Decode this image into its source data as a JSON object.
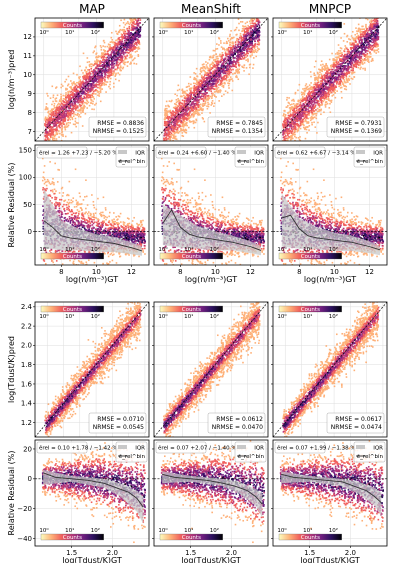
{
  "chart_data": {
    "type": "heatmap",
    "columns": [
      "MAP",
      "MeanShift",
      "MNPCP"
    ],
    "colorbar": {
      "label": "Counts",
      "ticks": [
        "10⁰",
        "10¹",
        "10²"
      ],
      "colormap": [
        "#fcfdbf",
        "#feb078",
        "#f1605d",
        "#b63679",
        "#721f81",
        "#2d1160",
        "#000004"
      ]
    },
    "rows": [
      {
        "kind": "scatter",
        "ylabel": "log(n/m⁻³)pred",
        "xlim": [
          6.5,
          13
        ],
        "ylim": [
          6.5,
          13
        ],
        "yticks": [
          {
            "v": 7,
            "t": "7"
          },
          {
            "v": 8,
            "t": "8"
          },
          {
            "v": 9,
            "t": "9"
          },
          {
            "v": 10,
            "t": "10"
          },
          {
            "v": 11,
            "t": "11"
          },
          {
            "v": 12,
            "t": "12"
          }
        ],
        "panels": [
          {
            "metrics": [
              "RMSE = 0.8836",
              "NRMSE = 0.1525"
            ]
          },
          {
            "metrics": [
              "RMSE = 0.7845",
              "NRMSE = 0.1354"
            ]
          },
          {
            "metrics": [
              "RMSE = 0.7931",
              "NRMSE = 0.1369"
            ]
          }
        ]
      },
      {
        "kind": "residual",
        "ylabel": "Relative Residual (%)",
        "xlabel": "log(n/m⁻³)GT",
        "xlim": [
          6.5,
          13
        ],
        "ylim": [
          -62,
          160
        ],
        "xticks": [
          {
            "v": 8,
            "t": "8"
          },
          {
            "v": 10,
            "t": "10"
          },
          {
            "v": 12,
            "t": "12"
          }
        ],
        "yticks": [
          {
            "v": 0,
            "t": "0"
          },
          {
            "v": 50,
            "t": "50"
          },
          {
            "v": 100,
            "t": "100"
          },
          {
            "v": 150,
            "t": "150"
          }
        ],
        "legend": [
          "IQR",
          "ẽ_rel^bin"
        ],
        "panels": [
          {
            "summary": "ẽrel = 1.26 +7.23 / −5.20 %",
            "median": [
              [
                7,
                20
              ],
              [
                7.5,
                8
              ],
              [
                8,
                -8
              ],
              [
                8.5,
                -12
              ],
              [
                9,
                -14
              ],
              [
                10,
                -18
              ],
              [
                11,
                -22
              ],
              [
                12,
                -30
              ],
              [
                12.6,
                -36
              ]
            ],
            "iqr_hi": [
              [
                7,
                80
              ],
              [
                8,
                20
              ],
              [
                9,
                5
              ],
              [
                10,
                -5
              ],
              [
                11,
                -10
              ],
              [
                12,
                -20
              ],
              [
                12.6,
                -28
              ]
            ],
            "iqr_lo": [
              [
                7,
                -30
              ],
              [
                8,
                -35
              ],
              [
                9,
                -35
              ],
              [
                10,
                -38
              ],
              [
                11,
                -38
              ],
              [
                12,
                -42
              ],
              [
                12.6,
                -45
              ]
            ]
          },
          {
            "summary": "ẽrel = 0.24 +6.60 / −1.40 %",
            "median": [
              [
                7,
                15
              ],
              [
                7.5,
                40
              ],
              [
                8,
                8
              ],
              [
                8.5,
                -5
              ],
              [
                9,
                -10
              ],
              [
                10,
                -15
              ],
              [
                11,
                -20
              ],
              [
                12,
                -28
              ],
              [
                12.6,
                -35
              ]
            ],
            "iqr_hi": [
              [
                7,
                50
              ],
              [
                8,
                30
              ],
              [
                9,
                10
              ],
              [
                10,
                0
              ],
              [
                11,
                -8
              ],
              [
                12,
                -18
              ],
              [
                12.6,
                -28
              ]
            ],
            "iqr_lo": [
              [
                7,
                -25
              ],
              [
                8,
                -30
              ],
              [
                9,
                -32
              ],
              [
                10,
                -35
              ],
              [
                11,
                -35
              ],
              [
                12,
                -40
              ],
              [
                12.6,
                -44
              ]
            ]
          },
          {
            "summary": "ẽrel = 0.62 +6.67 / −3.14 %",
            "median": [
              [
                7,
                25
              ],
              [
                7.5,
                30
              ],
              [
                8,
                5
              ],
              [
                8.5,
                -8
              ],
              [
                9,
                -12
              ],
              [
                10,
                -16
              ],
              [
                11,
                -20
              ],
              [
                12,
                -28
              ],
              [
                12.6,
                -34
              ]
            ],
            "iqr_hi": [
              [
                7,
                70
              ],
              [
                8,
                25
              ],
              [
                9,
                8
              ],
              [
                10,
                -2
              ],
              [
                11,
                -8
              ],
              [
                12,
                -18
              ],
              [
                12.6,
                -28
              ]
            ],
            "iqr_lo": [
              [
                7,
                -28
              ],
              [
                8,
                -32
              ],
              [
                9,
                -33
              ],
              [
                10,
                -36
              ],
              [
                11,
                -36
              ],
              [
                12,
                -40
              ],
              [
                12.6,
                -44
              ]
            ]
          }
        ]
      },
      {
        "kind": "scatter",
        "ylabel": "log(Tdust/K)pred",
        "xlim": [
          1.05,
          2.45
        ],
        "ylim": [
          1.05,
          2.45
        ],
        "yticks": [
          {
            "v": 1.2,
            "t": "1.2"
          },
          {
            "v": 1.4,
            "t": "1.4"
          },
          {
            "v": 1.6,
            "t": "1.6"
          },
          {
            "v": 1.8,
            "t": "1.8"
          },
          {
            "v": 2.0,
            "t": "2.0"
          },
          {
            "v": 2.2,
            "t": "2.2"
          },
          {
            "v": 2.4,
            "t": "2.4"
          }
        ],
        "panels": [
          {
            "metrics": [
              "RMSE = 0.0710",
              "NRMSE = 0.0545"
            ]
          },
          {
            "metrics": [
              "RMSE = 0.0612",
              "NRMSE = 0.0470"
            ]
          },
          {
            "metrics": [
              "RMSE = 0.0617",
              "NRMSE = 0.0474"
            ]
          }
        ]
      },
      {
        "kind": "residual",
        "ylabel": "Relative Residual (%)",
        "xlabel": "log(Tdust/K)GT",
        "xlim": [
          1.05,
          2.45
        ],
        "ylim": [
          -45,
          26
        ],
        "xticks": [
          {
            "v": 1.5,
            "t": "1.5"
          },
          {
            "v": 2.0,
            "t": "2.0"
          }
        ],
        "yticks": [
          {
            "v": -40,
            "t": "−40"
          },
          {
            "v": -20,
            "t": "−20"
          },
          {
            "v": 0,
            "t": "0"
          },
          {
            "v": 20,
            "t": "20"
          }
        ],
        "legend": [
          "IQR",
          "ẽ_rel^bin"
        ],
        "panels": [
          {
            "summary": "ẽrel = 0.10 +1.78 / −1.42 %",
            "median": [
              [
                1.15,
                4
              ],
              [
                1.3,
                1
              ],
              [
                1.5,
                0
              ],
              [
                1.7,
                -1
              ],
              [
                1.9,
                -3
              ],
              [
                2.05,
                -6
              ],
              [
                2.2,
                -9
              ],
              [
                2.3,
                -13
              ],
              [
                2.38,
                -19
              ]
            ],
            "iqr_hi": [
              [
                1.15,
                6
              ],
              [
                1.5,
                2
              ],
              [
                1.9,
                0
              ],
              [
                2.1,
                -3
              ],
              [
                2.3,
                -8
              ],
              [
                2.38,
                -12
              ]
            ],
            "iqr_lo": [
              [
                1.15,
                -4
              ],
              [
                1.5,
                -2
              ],
              [
                1.9,
                -6
              ],
              [
                2.1,
                -12
              ],
              [
                2.3,
                -22
              ],
              [
                2.38,
                -30
              ]
            ]
          },
          {
            "summary": "ẽrel = 0.07 +2.07 / −1.40 %",
            "median": [
              [
                1.15,
                3
              ],
              [
                1.3,
                1
              ],
              [
                1.5,
                0
              ],
              [
                1.7,
                -1
              ],
              [
                1.9,
                -3
              ],
              [
                2.05,
                -5
              ],
              [
                2.2,
                -8
              ],
              [
                2.3,
                -12
              ],
              [
                2.38,
                -17
              ]
            ],
            "iqr_hi": [
              [
                1.15,
                5
              ],
              [
                1.5,
                2
              ],
              [
                1.9,
                0
              ],
              [
                2.1,
                -2
              ],
              [
                2.3,
                -7
              ],
              [
                2.38,
                -10
              ]
            ],
            "iqr_lo": [
              [
                1.15,
                -3
              ],
              [
                1.5,
                -2
              ],
              [
                1.9,
                -5
              ],
              [
                2.1,
                -10
              ],
              [
                2.3,
                -18
              ],
              [
                2.38,
                -26
              ]
            ]
          },
          {
            "summary": "ẽrel = 0.07 +1.99 / −1.38 %",
            "median": [
              [
                1.15,
                3
              ],
              [
                1.3,
                1
              ],
              [
                1.5,
                0
              ],
              [
                1.7,
                -1
              ],
              [
                1.9,
                -2
              ],
              [
                2.05,
                -5
              ],
              [
                2.2,
                -8
              ],
              [
                2.3,
                -12
              ],
              [
                2.38,
                -16
              ]
            ],
            "iqr_hi": [
              [
                1.15,
                5
              ],
              [
                1.5,
                2
              ],
              [
                1.9,
                0
              ],
              [
                2.1,
                -2
              ],
              [
                2.3,
                -6
              ],
              [
                2.38,
                -9
              ]
            ],
            "iqr_lo": [
              [
                1.15,
                -3
              ],
              [
                1.5,
                -2
              ],
              [
                1.9,
                -5
              ],
              [
                2.1,
                -10
              ],
              [
                2.3,
                -18
              ],
              [
                2.38,
                -25
              ]
            ]
          }
        ]
      }
    ]
  }
}
